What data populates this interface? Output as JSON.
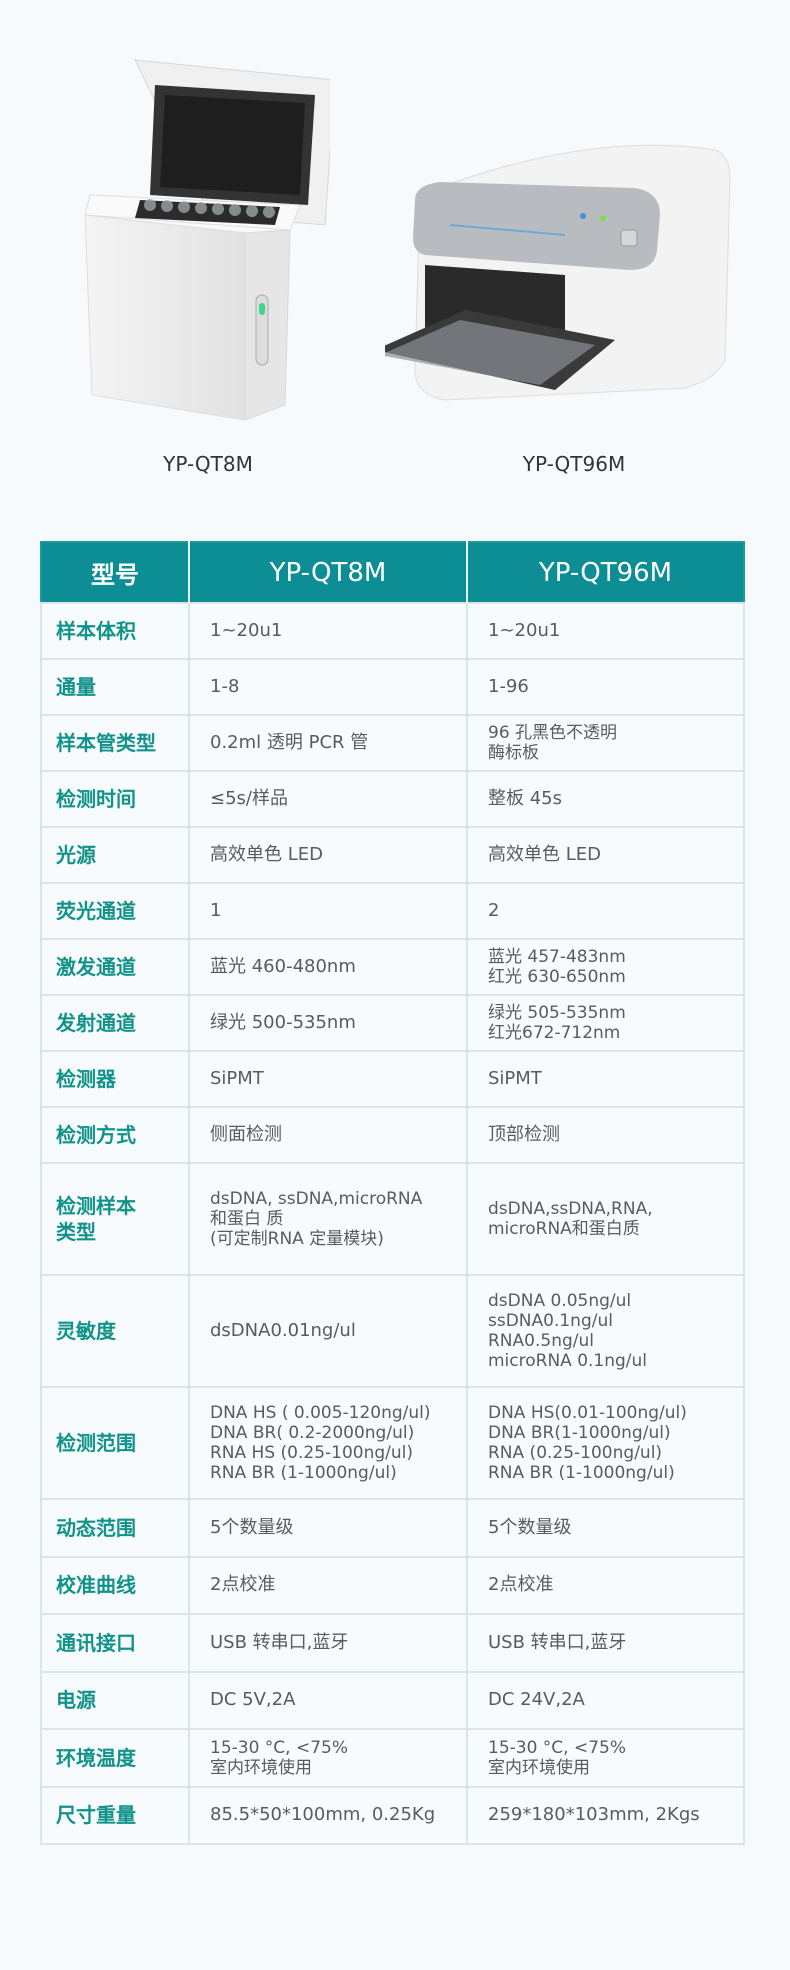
{
  "products": [
    {
      "name": "YP-QT8M",
      "image": "benchtop-fluorometer-8-tube-open-lid"
    },
    {
      "name": "YP-QT96M",
      "image": "benchtop-fluorometer-96-well-plate-drawer"
    }
  ],
  "table": {
    "headers": [
      "型号",
      "YP-QT8M",
      "YP-QT96M"
    ],
    "rows": [
      {
        "label": "样本体积",
        "a": [
          "1~20u1"
        ],
        "b": [
          "1~20u1"
        ]
      },
      {
        "label": "通量",
        "a": [
          "1-8"
        ],
        "b": [
          "1-96"
        ]
      },
      {
        "label": "样本管类型",
        "a": [
          "0.2ml 透明 PCR 管"
        ],
        "b": [
          "96 孔黑色不透明",
          "酶标板"
        ]
      },
      {
        "label": "检测时间",
        "a": [
          "≤5s/样品"
        ],
        "b": [
          "整板 45s"
        ]
      },
      {
        "label": "光源",
        "a": [
          "高效单色 LED"
        ],
        "b": [
          "高效单色 LED"
        ]
      },
      {
        "label": "荧光通道",
        "a": [
          "1"
        ],
        "b": [
          "2"
        ]
      },
      {
        "label": "激发通道",
        "a": [
          "蓝光 460-480nm"
        ],
        "b": [
          "蓝光 457-483nm",
          "红光 630-650nm"
        ]
      },
      {
        "label": "发射通道",
        "a": [
          "绿光 500-535nm"
        ],
        "b": [
          "绿光 505-535nm",
          "红光672-712nm"
        ]
      },
      {
        "label": "检测器",
        "a": [
          "SiPMT"
        ],
        "b": [
          "SiPMT"
        ]
      },
      {
        "label": "检测方式",
        "a": [
          "侧面检测"
        ],
        "b": [
          "顶部检测"
        ]
      },
      {
        "label": "检测样本类型",
        "a": [
          "dsDNA, ssDNA,microRNA",
          "和蛋白 质",
          "(可定制RNA 定量模块)"
        ],
        "b": [
          "dsDNA,ssDNA,RNA,",
          "microRNA和蛋白质"
        ]
      },
      {
        "label": "灵敏度",
        "a": [
          "dsDNA0.01ng/ul"
        ],
        "b": [
          "dsDNA 0.05ng/ul",
          "ssDNA0.1ng/ul",
          "RNA0.5ng/ul",
          "microRNA 0.1ng/ul"
        ]
      },
      {
        "label": "检测范围",
        "a": [
          "DNA HS ( 0.005-120ng/ul)",
          "DNA BR( 0.2-2000ng/ul)",
          "RNA HS (0.25-100ng/ul)",
          "RNA BR (1-1000ng/ul)"
        ],
        "b": [
          "DNA HS(0.01-100ng/ul)",
          "DNA BR(1-1000ng/ul)",
          "RNA (0.25-100ng/ul)",
          "RNA BR (1-1000ng/ul)"
        ]
      },
      {
        "label": "动态范围",
        "a": [
          "5个数量级"
        ],
        "b": [
          "5个数量级"
        ]
      },
      {
        "label": "校准曲线",
        "a": [
          "2点校准"
        ],
        "b": [
          "2点校准"
        ]
      },
      {
        "label": "通讯接口",
        "a": [
          "USB 转串口,蓝牙"
        ],
        "b": [
          "USB 转串口,蓝牙"
        ]
      },
      {
        "label": "电源",
        "a": [
          "DC 5V,2A"
        ],
        "b": [
          "DC 24V,2A"
        ]
      },
      {
        "label": "环境温度",
        "a": [
          "15-30 °C, <75%",
          "室内环境使用"
        ],
        "b": [
          "15-30 °C, <75%",
          "室内环境使用"
        ]
      },
      {
        "label": "尺寸重量",
        "a": [
          "85.5*50*100mm, 0.25Kg"
        ],
        "b": [
          "259*180*103mm, 2Kgs"
        ]
      }
    ]
  },
  "colors": {
    "header": "#0c8e94",
    "label": "#12938a",
    "text": "#585c60",
    "background": "#f6fafc"
  }
}
